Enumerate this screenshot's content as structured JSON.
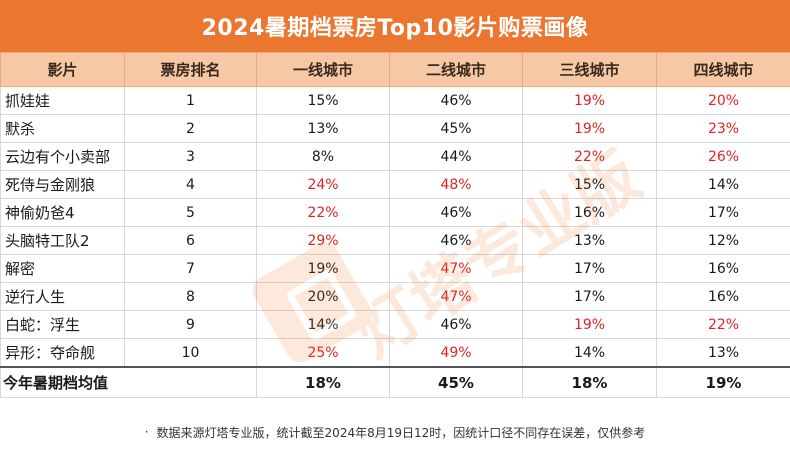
{
  "title": "2024暑期档票房Top10影片购票画像",
  "chart_data": {
    "type": "table",
    "columns": [
      "影片",
      "票房排名",
      "一线城市",
      "二线城市",
      "三线城市",
      "四线城市"
    ],
    "rows": [
      {
        "film": "抓娃娃",
        "rank": "1",
        "values": [
          "15%",
          "46%",
          "19%",
          "20%"
        ],
        "highlight": [
          false,
          false,
          true,
          true
        ]
      },
      {
        "film": "默杀",
        "rank": "2",
        "values": [
          "13%",
          "45%",
          "19%",
          "23%"
        ],
        "highlight": [
          false,
          false,
          true,
          true
        ]
      },
      {
        "film": "云边有个小卖部",
        "rank": "3",
        "values": [
          "8%",
          "44%",
          "22%",
          "26%"
        ],
        "highlight": [
          false,
          false,
          true,
          true
        ]
      },
      {
        "film": "死侍与金刚狼",
        "rank": "4",
        "values": [
          "24%",
          "48%",
          "15%",
          "14%"
        ],
        "highlight": [
          true,
          true,
          false,
          false
        ]
      },
      {
        "film": "神偷奶爸4",
        "rank": "5",
        "values": [
          "22%",
          "46%",
          "16%",
          "17%"
        ],
        "highlight": [
          true,
          false,
          false,
          false
        ]
      },
      {
        "film": "头脑特工队2",
        "rank": "6",
        "values": [
          "29%",
          "46%",
          "13%",
          "12%"
        ],
        "highlight": [
          true,
          false,
          false,
          false
        ]
      },
      {
        "film": "解密",
        "rank": "7",
        "values": [
          "19%",
          "47%",
          "17%",
          "16%"
        ],
        "highlight": [
          false,
          true,
          false,
          false
        ]
      },
      {
        "film": "逆行人生",
        "rank": "8",
        "values": [
          "20%",
          "47%",
          "17%",
          "16%"
        ],
        "highlight": [
          false,
          true,
          false,
          false
        ]
      },
      {
        "film": "白蛇：浮生",
        "rank": "9",
        "values": [
          "14%",
          "46%",
          "19%",
          "22%"
        ],
        "highlight": [
          false,
          false,
          true,
          true
        ]
      },
      {
        "film": "异形：夺命舰",
        "rank": "10",
        "values": [
          "25%",
          "49%",
          "14%",
          "13%"
        ],
        "highlight": [
          true,
          true,
          false,
          false
        ]
      }
    ],
    "average_row": {
      "label": "今年暑期档均值",
      "values": [
        "18%",
        "45%",
        "18%",
        "19%"
      ]
    }
  },
  "footer": {
    "bullet": "·",
    "note": "数据来源灯塔专业版，统计截至2024年8月19日12时，因统计口径不同存在误差，仅供参考"
  },
  "watermark": {
    "text": "灯塔专业版"
  },
  "colors": {
    "header": "#eb7630",
    "column_header": "#f6c8a6",
    "highlight": "#e02424"
  }
}
